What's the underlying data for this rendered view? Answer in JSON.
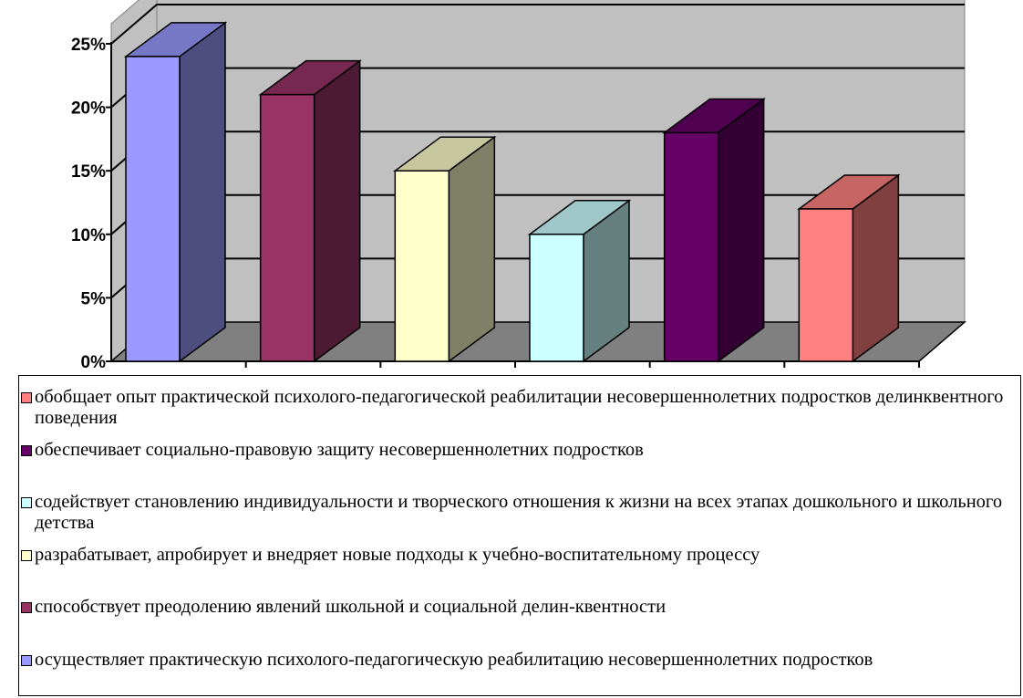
{
  "chart_data": {
    "type": "bar",
    "three_d": true,
    "title": "",
    "xlabel": "",
    "ylabel": "",
    "ylim": [
      0,
      25
    ],
    "yticks": [
      0,
      5,
      10,
      15,
      20,
      25
    ],
    "ytick_labels": [
      "0%",
      "5%",
      "10%",
      "15%",
      "20%",
      "25%"
    ],
    "grid": true,
    "legend": "bottom",
    "series": [
      {
        "name": "осуществляет практическую психолого-педагогическую реабилитацию несовершеннолетних подростков",
        "value": 24,
        "color": "#9999FF"
      },
      {
        "name": "способствует преодолению явлений школьной и социальной делин-квентности",
        "value": 21,
        "color": "#993366"
      },
      {
        "name": "разрабатывает, апробирует и внедряет новые подходы к учебно-воспитательному процессу",
        "value": 15,
        "color": "#FFFFCC"
      },
      {
        "name": "содействует становлению индивидуальности и творческого отношения к жизни на всех этапах дошкольного и школьного детства",
        "value": 10,
        "color": "#CCFFFF"
      },
      {
        "name": "обеспечивает социально-правовую защиту несовершеннолетних подростков",
        "value": 18,
        "color": "#660066"
      },
      {
        "name": "обобщает опыт практической психолого-педагогической реабилитации несовершеннолетних подростков делинквентного поведения",
        "value": 12,
        "color": "#FF8080"
      }
    ],
    "legend_order": [
      5,
      4,
      3,
      2,
      1,
      0
    ]
  }
}
